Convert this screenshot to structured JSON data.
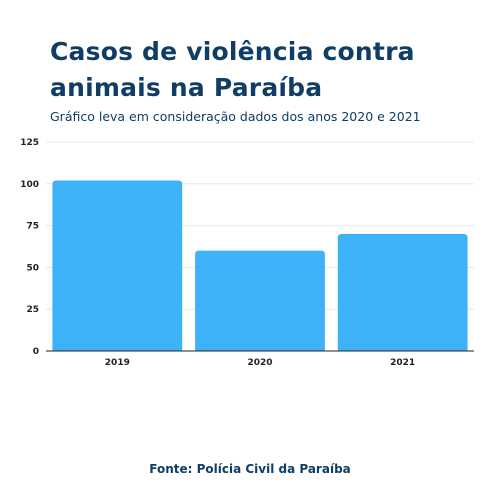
{
  "header": {
    "title": "Casos de violência contra animais na Paraíba",
    "subtitle": "Gráfico leva em consideração dados dos anos 2020 e 2021"
  },
  "footer": {
    "source": "Fonte: Polícia Civil da Paraíba"
  },
  "chart_data": {
    "type": "bar",
    "categories": [
      "2019",
      "2020",
      "2021"
    ],
    "values": [
      102,
      60,
      70
    ],
    "title": "Casos de violência contra animais na Paraíba",
    "subtitle": "Gráfico leva em consideração dados dos anos 2020 e 2021",
    "xlabel": "",
    "ylabel": "",
    "ylim": [
      0,
      125
    ],
    "yticks": [
      "0",
      "25",
      "50",
      "75",
      "100",
      "125"
    ],
    "grid": true,
    "legend": "none",
    "colors": {
      "bar": "#3db2f8",
      "grid": "#e6e9ec",
      "axis": "#222222",
      "text": "#0f3d66"
    }
  }
}
